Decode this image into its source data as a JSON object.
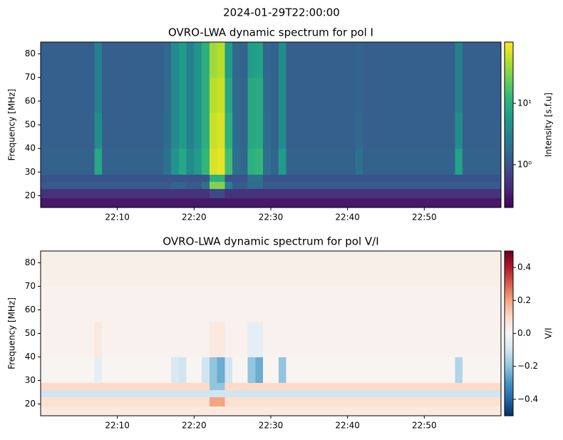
{
  "title": "2024-01-29T22:00:00",
  "chart_data": [
    {
      "type": "heatmap",
      "title": "OVRO-LWA dynamic spectrum for pol I",
      "ylabel": "Frequency [MHz]",
      "colormap": "viridis",
      "xlim": [
        0,
        60
      ],
      "xticks": [
        {
          "value": 10,
          "label": "22:10"
        },
        {
          "value": 20,
          "label": "22:20"
        },
        {
          "value": 30,
          "label": "22:30"
        },
        {
          "value": 40,
          "label": "22:40"
        },
        {
          "value": 50,
          "label": "22:50"
        }
      ],
      "ylim": [
        15,
        85
      ],
      "yticks": [
        20,
        30,
        40,
        50,
        60,
        70,
        80
      ],
      "xbins": [
        0,
        1,
        2,
        3,
        4,
        5,
        6,
        7,
        8,
        9,
        10,
        11,
        12,
        13,
        14,
        15,
        16,
        17,
        18,
        19,
        20,
        21,
        22,
        23,
        24,
        25,
        26,
        27,
        28,
        29,
        30,
        31,
        32,
        33,
        34,
        35,
        36,
        37,
        38,
        39,
        40,
        41,
        42,
        43,
        44,
        45,
        46,
        47,
        48,
        49,
        50,
        51,
        52,
        53,
        54,
        55,
        56,
        57,
        58,
        59,
        60
      ],
      "ybins": [
        15,
        19,
        23,
        26,
        29,
        40,
        55,
        70,
        85
      ],
      "colorbar": {
        "label": "Intensity [s.f.u]",
        "scale": "log",
        "lim": [
          0.2,
          100
        ],
        "ticks": [
          {
            "value": 1,
            "label": "10⁰"
          },
          {
            "value": 10,
            "label": "10¹"
          }
        ]
      },
      "values": [
        [
          0.3,
          0.3,
          0.3,
          0.3,
          0.3,
          0.3,
          0.3,
          0.3,
          0.3,
          0.3,
          0.3,
          0.3,
          0.3,
          0.3,
          0.3,
          0.3,
          0.3,
          0.3,
          0.3,
          0.3,
          0.3,
          0.3,
          0.3,
          0.3,
          0.3,
          0.3,
          0.3,
          0.3,
          0.3,
          0.3,
          0.3,
          0.3,
          0.3,
          0.3,
          0.3,
          0.3,
          0.3,
          0.3,
          0.3,
          0.3,
          0.3,
          0.3,
          0.3,
          0.3,
          0.3,
          0.3,
          0.3,
          0.3,
          0.3,
          0.3,
          0.3,
          0.3,
          0.3,
          0.3,
          0.3,
          0.3,
          0.3,
          0.3,
          0.3,
          0.3
        ],
        [
          0.5,
          0.5,
          0.5,
          0.5,
          0.5,
          0.5,
          0.5,
          0.5,
          0.5,
          0.5,
          0.5,
          0.5,
          0.5,
          0.5,
          0.5,
          0.5,
          0.5,
          0.5,
          0.5,
          0.5,
          0.5,
          0.5,
          0.8,
          0.8,
          0.5,
          0.5,
          0.5,
          0.5,
          0.5,
          0.5,
          0.5,
          0.5,
          0.5,
          0.5,
          0.5,
          0.5,
          0.5,
          0.5,
          0.5,
          0.5,
          0.5,
          0.5,
          0.5,
          0.5,
          0.5,
          0.5,
          0.5,
          0.5,
          0.5,
          0.5,
          0.5,
          0.5,
          0.5,
          0.5,
          0.5,
          0.5,
          0.5,
          0.5,
          0.5,
          0.5
        ],
        [
          1.2,
          1.2,
          1.2,
          1.2,
          1.2,
          1.2,
          1.2,
          1.2,
          1.2,
          1.2,
          1.2,
          1.2,
          1.2,
          1.2,
          1.2,
          1.2,
          1.2,
          1.5,
          1.5,
          1.2,
          1.2,
          2,
          30,
          30,
          3,
          1.2,
          1.2,
          1.8,
          1.8,
          1.2,
          1.2,
          1.2,
          1.2,
          1.2,
          1.2,
          1.2,
          1.2,
          1.2,
          1.2,
          1.2,
          1.2,
          1.2,
          1.2,
          1.2,
          1.2,
          1.2,
          1.2,
          1.2,
          1.2,
          1.2,
          1.2,
          1.2,
          1.2,
          1.2,
          1.2,
          1.2,
          1.2,
          1.2,
          1.2,
          1.2
        ],
        [
          1,
          1,
          1,
          1,
          1,
          1,
          1,
          1,
          1,
          1,
          1,
          1,
          1,
          1,
          1,
          1,
          1,
          1,
          1,
          1,
          1,
          1,
          10,
          10,
          1,
          1,
          1,
          2,
          2,
          1,
          1,
          1,
          1,
          1,
          1,
          1,
          1,
          1,
          1,
          1,
          1,
          1,
          1,
          1,
          1,
          1,
          1,
          1,
          1,
          1,
          1,
          1,
          1,
          1,
          1,
          1,
          1,
          1,
          1,
          1
        ],
        [
          1.4,
          1.4,
          1.4,
          1.4,
          1.4,
          1.4,
          1.4,
          8,
          1.4,
          1.4,
          1.4,
          1.4,
          1.4,
          1.4,
          1.4,
          1.4,
          2,
          5,
          8,
          4,
          6,
          12,
          70,
          80,
          15,
          2,
          1.6,
          10,
          12,
          2,
          1.5,
          6,
          1.4,
          1.4,
          1.4,
          1.4,
          1.4,
          1.4,
          1.4,
          1.4,
          1.4,
          2,
          1.4,
          1.4,
          1.4,
          1.4,
          1.4,
          1.4,
          1.4,
          1.4,
          1.4,
          1.4,
          1.4,
          1.4,
          7,
          1.4,
          1.4,
          1.4,
          1.4,
          1.4
        ],
        [
          1.3,
          1.3,
          1.3,
          1.3,
          1.3,
          1.3,
          1.3,
          4,
          1.3,
          1.3,
          1.3,
          1.3,
          1.3,
          1.3,
          1.3,
          1.3,
          1.8,
          4,
          6,
          3,
          5,
          10,
          60,
          70,
          10,
          1.8,
          1.5,
          8,
          9,
          1.8,
          1.4,
          4,
          1.3,
          1.3,
          1.3,
          1.3,
          1.3,
          1.3,
          1.3,
          1.3,
          1.3,
          1.6,
          1.3,
          1.3,
          1.3,
          1.3,
          1.3,
          1.3,
          1.3,
          1.3,
          1.3,
          1.3,
          1.3,
          1.3,
          4,
          1.3,
          1.3,
          1.3,
          1.3,
          1.3
        ],
        [
          1.3,
          1.3,
          1.3,
          1.3,
          1.3,
          1.3,
          1.3,
          3,
          1.3,
          1.3,
          1.3,
          1.3,
          1.3,
          1.3,
          1.3,
          1.3,
          1.7,
          4,
          6,
          3,
          5,
          10,
          50,
          60,
          8,
          1.7,
          1.5,
          8,
          9,
          1.7,
          1.4,
          4,
          1.3,
          1.3,
          1.3,
          1.3,
          1.3,
          1.3,
          1.3,
          1.3,
          1.3,
          1.5,
          1.3,
          1.3,
          1.3,
          1.3,
          1.3,
          1.3,
          1.3,
          1.3,
          1.3,
          1.3,
          1.3,
          1.3,
          3,
          1.3,
          1.3,
          1.3,
          1.3,
          1.3
        ],
        [
          1.3,
          1.3,
          1.3,
          1.3,
          1.3,
          1.3,
          1.3,
          3,
          1.3,
          1.3,
          1.3,
          1.3,
          1.3,
          1.3,
          1.3,
          1.3,
          1.6,
          4,
          6,
          3,
          5,
          10,
          40,
          50,
          6,
          1.6,
          1.4,
          6,
          7,
          1.6,
          1.4,
          4,
          1.3,
          1.3,
          1.3,
          1.3,
          1.3,
          1.3,
          1.3,
          1.3,
          1.3,
          1.5,
          1.3,
          1.3,
          1.3,
          1.3,
          1.3,
          1.3,
          1.3,
          1.3,
          1.3,
          1.3,
          1.3,
          1.3,
          3,
          1.3,
          1.3,
          1.3,
          1.3,
          1.3
        ]
      ]
    },
    {
      "type": "heatmap",
      "title": "OVRO-LWA dynamic spectrum for pol V/I",
      "ylabel": "Frequency [MHz]",
      "colormap": "RdBu_r",
      "xlim": [
        0,
        60
      ],
      "xticks": [
        {
          "value": 10,
          "label": "22:10"
        },
        {
          "value": 20,
          "label": "22:20"
        },
        {
          "value": 30,
          "label": "22:30"
        },
        {
          "value": 40,
          "label": "22:40"
        },
        {
          "value": 50,
          "label": "22:50"
        }
      ],
      "ylim": [
        15,
        85
      ],
      "yticks": [
        20,
        30,
        40,
        50,
        60,
        70,
        80
      ],
      "xbins": [
        0,
        1,
        2,
        3,
        4,
        5,
        6,
        7,
        8,
        9,
        10,
        11,
        12,
        13,
        14,
        15,
        16,
        17,
        18,
        19,
        20,
        21,
        22,
        23,
        24,
        25,
        26,
        27,
        28,
        29,
        30,
        31,
        32,
        33,
        34,
        35,
        36,
        37,
        38,
        39,
        40,
        41,
        42,
        43,
        44,
        45,
        46,
        47,
        48,
        49,
        50,
        51,
        52,
        53,
        54,
        55,
        56,
        57,
        58,
        59,
        60
      ],
      "ybins": [
        15,
        19,
        23,
        26,
        29,
        40,
        55,
        70,
        85
      ],
      "colorbar": {
        "label": "V/I",
        "scale": "linear",
        "lim": [
          -0.5,
          0.5
        ],
        "ticks": [
          {
            "value": -0.4,
            "label": "−0.4"
          },
          {
            "value": -0.2,
            "label": "−0.2"
          },
          {
            "value": 0,
            "label": "0.0"
          },
          0.2,
          0.4
        ]
      },
      "values": [
        [
          0.05,
          0.05,
          0.05,
          0.05,
          0.05,
          0.05,
          0.05,
          0.05,
          0.05,
          0.05,
          0.05,
          0.05,
          0.05,
          0.05,
          0.05,
          0.05,
          0.05,
          0.05,
          0.05,
          0.05,
          0.05,
          0.05,
          0.05,
          0.05,
          0.05,
          0.05,
          0.05,
          0.05,
          0.05,
          0.05,
          0.05,
          0.05,
          0.05,
          0.05,
          0.05,
          0.05,
          0.05,
          0.05,
          0.05,
          0.05,
          0.05,
          0.05,
          0.05,
          0.05,
          0.05,
          0.05,
          0.05,
          0.05,
          0.05,
          0.05,
          0.05,
          0.05,
          0.05,
          0.05,
          0.05,
          0.05,
          0.05,
          0.05,
          0.05,
          0.05
        ],
        [
          0.08,
          0.08,
          0.08,
          0.08,
          0.08,
          0.08,
          0.08,
          0.08,
          0.08,
          0.08,
          0.08,
          0.08,
          0.08,
          0.08,
          0.08,
          0.08,
          0.08,
          0.08,
          0.08,
          0.08,
          0.08,
          0.08,
          0.2,
          0.2,
          0.08,
          0.08,
          0.08,
          0.08,
          0.08,
          0.08,
          0.08,
          0.08,
          0.08,
          0.08,
          0.08,
          0.08,
          0.08,
          0.08,
          0.08,
          0.08,
          0.08,
          0.08,
          0.08,
          0.08,
          0.08,
          0.08,
          0.08,
          0.08,
          0.08,
          0.08,
          0.08,
          0.08,
          0.08,
          0.08,
          0.08,
          0.08,
          0.08,
          0.08,
          0.08,
          0.08
        ],
        [
          -0.1,
          -0.1,
          -0.1,
          -0.1,
          -0.1,
          -0.1,
          -0.1,
          -0.1,
          -0.1,
          -0.1,
          -0.1,
          -0.1,
          -0.1,
          -0.1,
          -0.1,
          -0.1,
          -0.1,
          -0.1,
          -0.1,
          -0.1,
          -0.1,
          -0.1,
          -0.1,
          -0.1,
          -0.1,
          -0.1,
          -0.1,
          -0.1,
          -0.1,
          -0.1,
          -0.1,
          -0.1,
          -0.1,
          -0.1,
          -0.1,
          -0.1,
          -0.1,
          -0.1,
          -0.1,
          -0.1,
          -0.1,
          -0.1,
          -0.1,
          -0.1,
          -0.1,
          -0.1,
          -0.1,
          -0.1,
          -0.1,
          -0.1,
          -0.1,
          -0.1,
          -0.1,
          -0.1,
          -0.1,
          -0.1,
          -0.1,
          -0.1,
          -0.1,
          -0.1
        ],
        [
          0.1,
          0.1,
          0.1,
          0.1,
          0.1,
          0.1,
          0.1,
          0.1,
          0.1,
          0.1,
          0.1,
          0.1,
          0.1,
          0.1,
          0.1,
          0.1,
          0.1,
          0.1,
          0.1,
          0.1,
          0.1,
          0.1,
          -0.2,
          -0.2,
          0.1,
          0.1,
          0.1,
          0.1,
          0.1,
          0.1,
          0.1,
          0.1,
          0.1,
          0.1,
          0.1,
          0.1,
          0.1,
          0.1,
          0.1,
          0.1,
          0.1,
          0.1,
          0.1,
          0.1,
          0.1,
          0.1,
          0.1,
          0.1,
          0.1,
          0.1,
          0.1,
          0.1,
          0.1,
          0.1,
          0.1,
          0.1,
          0.1,
          0.1,
          0.1,
          0.1
        ],
        [
          0.01,
          0.01,
          0.01,
          0.01,
          0.01,
          0.01,
          0.01,
          -0.05,
          0.01,
          0.01,
          0.01,
          0.01,
          0.01,
          0.01,
          0.01,
          0.01,
          0.01,
          -0.08,
          -0.1,
          0.01,
          0.01,
          -0.1,
          -0.2,
          -0.25,
          -0.1,
          0.01,
          0.01,
          -0.2,
          -0.25,
          0.01,
          0.01,
          -0.2,
          0.01,
          0.01,
          0.01,
          0.01,
          0.01,
          0.01,
          0.01,
          0.01,
          0.01,
          0.01,
          0.01,
          0.01,
          0.01,
          0.01,
          0.01,
          0.01,
          0.01,
          0.01,
          0.01,
          0.01,
          0.01,
          0.01,
          -0.15,
          0.01,
          0.01,
          0.01,
          0.01,
          0.01
        ],
        [
          0.02,
          0.02,
          0.02,
          0.02,
          0.02,
          0.02,
          0.02,
          0.05,
          0.02,
          0.02,
          0.02,
          0.02,
          0.02,
          0.02,
          0.02,
          0.02,
          0.02,
          0.02,
          0.02,
          0.02,
          0.02,
          0.02,
          0.05,
          0.05,
          0.02,
          0.02,
          0.02,
          -0.05,
          -0.05,
          0.02,
          0.02,
          0.02,
          0.02,
          0.02,
          0.02,
          0.02,
          0.02,
          0.02,
          0.02,
          0.02,
          0.02,
          0.02,
          0.02,
          0.02,
          0.02,
          0.02,
          0.02,
          0.02,
          0.02,
          0.02,
          0.02,
          0.02,
          0.02,
          0.02,
          0.02,
          0.02,
          0.02,
          0.02,
          0.02,
          0.02
        ],
        [
          0.02,
          0.02,
          0.02,
          0.02,
          0.02,
          0.02,
          0.02,
          0.02,
          0.02,
          0.02,
          0.02,
          0.02,
          0.02,
          0.02,
          0.02,
          0.02,
          0.02,
          0.02,
          0.02,
          0.02,
          0.02,
          0.02,
          0.02,
          0.02,
          0.02,
          0.02,
          0.02,
          0.02,
          0.02,
          0.02,
          0.02,
          0.02,
          0.02,
          0.02,
          0.02,
          0.02,
          0.02,
          0.02,
          0.02,
          0.02,
          0.02,
          0.02,
          0.02,
          0.02,
          0.02,
          0.02,
          0.02,
          0.02,
          0.02,
          0.02,
          0.02,
          0.02,
          0.02,
          0.02,
          0.02,
          0.02,
          0.02,
          0.02,
          0.02,
          0.02
        ],
        [
          0.03,
          0.03,
          0.03,
          0.03,
          0.03,
          0.03,
          0.03,
          0.03,
          0.03,
          0.03,
          0.03,
          0.03,
          0.03,
          0.03,
          0.03,
          0.03,
          0.03,
          0.03,
          0.03,
          0.03,
          0.03,
          0.03,
          0.03,
          0.03,
          0.03,
          0.03,
          0.03,
          0.03,
          0.03,
          0.03,
          0.03,
          0.03,
          0.03,
          0.03,
          0.03,
          0.03,
          0.03,
          0.03,
          0.03,
          0.03,
          0.03,
          0.03,
          0.03,
          0.03,
          0.03,
          0.03,
          0.03,
          0.03,
          0.03,
          0.03,
          0.03,
          0.03,
          0.03,
          0.03,
          0.03,
          0.03,
          0.03,
          0.03,
          0.03,
          0.03
        ]
      ]
    }
  ]
}
